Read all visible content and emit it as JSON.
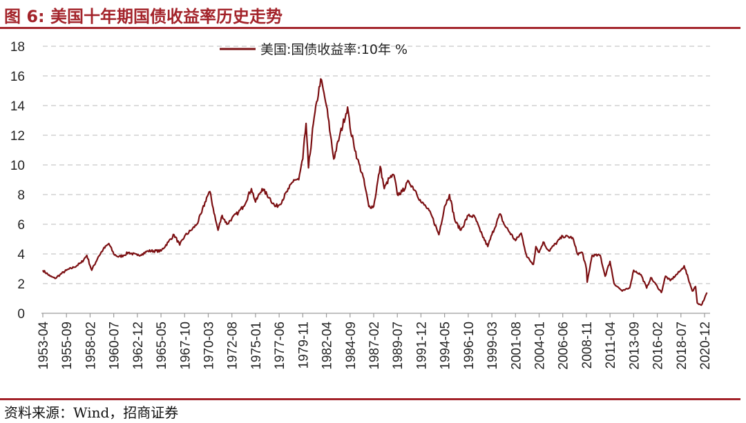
{
  "title": "图 6:  美国十年期国债收益率历史走势",
  "source": "资料来源：Wind，招商证券",
  "colors": {
    "accent": "#a3232a",
    "series": "#7b0f12",
    "grid": "#c8c8c8"
  },
  "chart_data": {
    "type": "line",
    "title": "",
    "xlabel": "",
    "ylabel": "",
    "ylim": [
      0,
      18
    ],
    "yticks": [
      0,
      2,
      4,
      6,
      8,
      10,
      12,
      14,
      16,
      18
    ],
    "grid": "horizontal-dashed",
    "legend": "top-center",
    "xtick_labels": [
      "1953-04",
      "1955-09",
      "1958-02",
      "1960-07",
      "1962-12",
      "1965-05",
      "1967-10",
      "1970-03",
      "1972-08",
      "1975-01",
      "1977-06",
      "1979-11",
      "1982-04",
      "1984-09",
      "1987-02",
      "1989-07",
      "1991-12",
      "1994-05",
      "1996-10",
      "1999-03",
      "2001-08",
      "2004-01",
      "2006-06",
      "2008-11",
      "2011-04",
      "2013-09",
      "2016-02",
      "2018-07",
      "2020-12"
    ],
    "series": [
      {
        "name": "美国:国债收益率:10年 %",
        "points": [
          [
            "1953-04",
            2.9
          ],
          [
            "1954-01",
            2.5
          ],
          [
            "1954-07",
            2.35
          ],
          [
            "1955-01",
            2.6
          ],
          [
            "1955-09",
            2.9
          ],
          [
            "1956-06",
            3.1
          ],
          [
            "1957-03",
            3.4
          ],
          [
            "1957-10",
            3.9
          ],
          [
            "1958-04",
            2.9
          ],
          [
            "1958-12",
            3.8
          ],
          [
            "1959-06",
            4.3
          ],
          [
            "1960-01",
            4.7
          ],
          [
            "1960-07",
            4.0
          ],
          [
            "1961-01",
            3.8
          ],
          [
            "1961-07",
            3.9
          ],
          [
            "1962-01",
            4.1
          ],
          [
            "1962-12",
            3.9
          ],
          [
            "1963-06",
            4.0
          ],
          [
            "1964-01",
            4.2
          ],
          [
            "1965-05",
            4.2
          ],
          [
            "1966-02",
            4.8
          ],
          [
            "1966-09",
            5.3
          ],
          [
            "1967-04",
            4.6
          ],
          [
            "1967-10",
            5.2
          ],
          [
            "1968-06",
            5.6
          ],
          [
            "1969-01",
            6.0
          ],
          [
            "1969-07",
            6.8
          ],
          [
            "1970-01",
            7.8
          ],
          [
            "1970-05",
            8.2
          ],
          [
            "1970-12",
            6.3
          ],
          [
            "1971-03",
            5.6
          ],
          [
            "1971-08",
            6.6
          ],
          [
            "1972-02",
            6.0
          ],
          [
            "1972-08",
            6.4
          ],
          [
            "1973-04",
            6.8
          ],
          [
            "1973-10",
            7.2
          ],
          [
            "1974-08",
            8.4
          ],
          [
            "1975-01",
            7.5
          ],
          [
            "1975-09",
            8.4
          ],
          [
            "1976-06",
            7.8
          ],
          [
            "1977-01",
            7.2
          ],
          [
            "1977-06",
            7.3
          ],
          [
            "1978-06",
            8.4
          ],
          [
            "1978-12",
            9.0
          ],
          [
            "1979-06",
            9.0
          ],
          [
            "1979-11",
            10.4
          ],
          [
            "1980-03",
            12.8
          ],
          [
            "1980-06",
            9.8
          ],
          [
            "1980-12",
            12.8
          ],
          [
            "1981-09",
            15.8
          ],
          [
            "1982-04",
            14.0
          ],
          [
            "1982-09",
            12.0
          ],
          [
            "1983-01",
            10.4
          ],
          [
            "1983-08",
            11.9
          ],
          [
            "1984-06",
            13.9
          ],
          [
            "1984-09",
            12.5
          ],
          [
            "1985-06",
            10.4
          ],
          [
            "1986-01",
            9.2
          ],
          [
            "1986-08",
            7.2
          ],
          [
            "1987-02",
            7.2
          ],
          [
            "1987-10",
            9.9
          ],
          [
            "1988-03",
            8.4
          ],
          [
            "1988-09",
            9.1
          ],
          [
            "1989-03",
            9.3
          ],
          [
            "1989-07",
            8.0
          ],
          [
            "1990-01",
            8.2
          ],
          [
            "1990-09",
            8.9
          ],
          [
            "1991-06",
            8.2
          ],
          [
            "1991-12",
            7.5
          ],
          [
            "1992-06",
            7.2
          ],
          [
            "1993-01",
            6.6
          ],
          [
            "1993-10",
            5.3
          ],
          [
            "1994-05",
            7.2
          ],
          [
            "1994-11",
            8.0
          ],
          [
            "1995-06",
            6.2
          ],
          [
            "1996-01",
            5.6
          ],
          [
            "1996-10",
            6.6
          ],
          [
            "1997-06",
            6.5
          ],
          [
            "1998-01",
            5.5
          ],
          [
            "1998-10",
            4.5
          ],
          [
            "1999-03",
            5.3
          ],
          [
            "2000-01",
            6.7
          ],
          [
            "2000-06",
            6.0
          ],
          [
            "2001-08",
            4.9
          ],
          [
            "2002-03",
            5.4
          ],
          [
            "2002-10",
            3.8
          ],
          [
            "2003-06",
            3.3
          ],
          [
            "2003-09",
            4.5
          ],
          [
            "2004-01",
            4.1
          ],
          [
            "2004-06",
            4.8
          ],
          [
            "2005-01",
            4.2
          ],
          [
            "2006-06",
            5.2
          ],
          [
            "2007-06",
            5.1
          ],
          [
            "2007-12",
            4.0
          ],
          [
            "2008-06",
            4.1
          ],
          [
            "2008-11",
            3.0
          ],
          [
            "2008-12",
            2.1
          ],
          [
            "2009-06",
            3.9
          ],
          [
            "2010-04",
            3.9
          ],
          [
            "2010-10",
            2.5
          ],
          [
            "2011-04",
            3.5
          ],
          [
            "2011-09",
            2.0
          ],
          [
            "2012-07",
            1.5
          ],
          [
            "2013-04",
            1.7
          ],
          [
            "2013-09",
            2.9
          ],
          [
            "2014-06",
            2.6
          ],
          [
            "2015-01",
            1.7
          ],
          [
            "2015-06",
            2.4
          ],
          [
            "2016-02",
            1.8
          ],
          [
            "2016-07",
            1.4
          ],
          [
            "2016-12",
            2.5
          ],
          [
            "2017-06",
            2.2
          ],
          [
            "2018-07",
            2.9
          ],
          [
            "2018-11",
            3.2
          ],
          [
            "2019-06",
            2.0
          ],
          [
            "2019-09",
            1.5
          ],
          [
            "2020-01",
            1.8
          ],
          [
            "2020-03",
            0.7
          ],
          [
            "2020-08",
            0.55
          ],
          [
            "2020-12",
            1.0
          ],
          [
            "2021-03",
            1.4
          ]
        ]
      }
    ]
  }
}
